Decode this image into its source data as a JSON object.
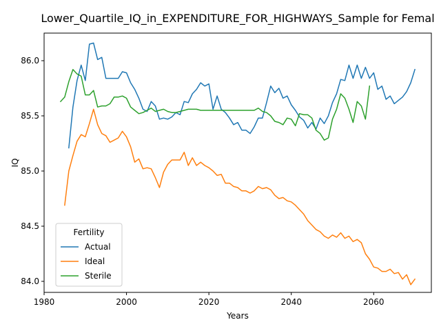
{
  "chart_data": {
    "type": "line",
    "title": "Lower_Quartile_IQ_in_EXPENDITURE_FOR_HIGHWAYS_Sample for Femal",
    "xlabel": "Years",
    "ylabel": "IQ",
    "xlim": [
      1980,
      2074
    ],
    "ylim": [
      83.9,
      86.25
    ],
    "xticks": [
      1980,
      2000,
      2020,
      2040,
      2060
    ],
    "yticks": [
      84.0,
      84.5,
      85.0,
      85.5,
      86.0
    ],
    "xtick_labels": [
      "1980",
      "2000",
      "2020",
      "2040",
      "2060"
    ],
    "ytick_labels": [
      "84.0",
      "84.5",
      "85.0",
      "85.5",
      "86.0"
    ],
    "grid": false,
    "legend": {
      "title": "Fertility",
      "placement": "lower-left"
    },
    "series": [
      {
        "name": "Actual",
        "color": "#1f77b4",
        "x": [
          1986,
          1987,
          1988,
          1989,
          1990,
          1991,
          1992,
          1993,
          1994,
          1995,
          1996,
          1997,
          1998,
          1999,
          2000,
          2001,
          2002,
          2003,
          2004,
          2005,
          2006,
          2007,
          2008,
          2009,
          2010,
          2011,
          2012,
          2013,
          2014,
          2015,
          2016,
          2017,
          2018,
          2019,
          2020,
          2021,
          2022,
          2023,
          2024,
          2025,
          2026,
          2027,
          2028,
          2029,
          2030,
          2031,
          2032,
          2033,
          2034,
          2035,
          2036,
          2037,
          2038,
          2039,
          2040,
          2041,
          2042,
          2043,
          2044,
          2045,
          2046,
          2047,
          2048,
          2049,
          2050,
          2051,
          2052,
          2053,
          2054,
          2055,
          2056,
          2057,
          2058,
          2059,
          2060,
          2061,
          2062,
          2063,
          2064,
          2065,
          2066,
          2067,
          2068,
          2069,
          2070
        ],
        "y": [
          85.21,
          85.58,
          85.82,
          85.96,
          85.82,
          86.15,
          86.16,
          86.01,
          86.03,
          85.84,
          85.84,
          85.84,
          85.84,
          85.9,
          85.89,
          85.8,
          85.74,
          85.66,
          85.56,
          85.54,
          85.63,
          85.59,
          85.47,
          85.48,
          85.47,
          85.49,
          85.53,
          85.51,
          85.63,
          85.62,
          85.7,
          85.74,
          85.8,
          85.77,
          85.79,
          85.56,
          85.68,
          85.56,
          85.53,
          85.48,
          85.42,
          85.44,
          85.37,
          85.37,
          85.34,
          85.4,
          85.48,
          85.48,
          85.62,
          85.77,
          85.71,
          85.75,
          85.66,
          85.68,
          85.6,
          85.55,
          85.49,
          85.46,
          85.39,
          85.44,
          85.38,
          85.48,
          85.43,
          85.5,
          85.62,
          85.7,
          85.83,
          85.82,
          85.96,
          85.84,
          85.96,
          85.84,
          85.94,
          85.84,
          85.89,
          85.74,
          85.77,
          85.65,
          85.68,
          85.61,
          85.64,
          85.67,
          85.72,
          85.8,
          85.92
        ]
      },
      {
        "name": "Ideal",
        "color": "#ff7f0e",
        "x": [
          1985,
          1986,
          1987,
          1988,
          1989,
          1990,
          1991,
          1992,
          1993,
          1994,
          1995,
          1996,
          1997,
          1998,
          1999,
          2000,
          2001,
          2002,
          2003,
          2004,
          2005,
          2006,
          2007,
          2008,
          2009,
          2010,
          2011,
          2012,
          2013,
          2014,
          2015,
          2016,
          2017,
          2018,
          2019,
          2020,
          2021,
          2022,
          2023,
          2024,
          2025,
          2026,
          2027,
          2028,
          2029,
          2030,
          2031,
          2032,
          2033,
          2034,
          2035,
          2036,
          2037,
          2038,
          2039,
          2040,
          2041,
          2042,
          2043,
          2044,
          2045,
          2046,
          2047,
          2048,
          2049,
          2050,
          2051,
          2052,
          2053,
          2054,
          2055,
          2056,
          2057,
          2058,
          2059,
          2060,
          2061,
          2062,
          2063,
          2064,
          2065,
          2066,
          2067,
          2068,
          2069,
          2070
        ],
        "y": [
          84.69,
          85.0,
          85.14,
          85.27,
          85.33,
          85.31,
          85.43,
          85.56,
          85.42,
          85.34,
          85.32,
          85.26,
          85.28,
          85.3,
          85.36,
          85.31,
          85.22,
          85.08,
          85.11,
          85.02,
          85.03,
          85.02,
          84.94,
          84.85,
          84.99,
          85.06,
          85.1,
          85.1,
          85.1,
          85.17,
          85.05,
          85.12,
          85.05,
          85.08,
          85.05,
          85.03,
          85.0,
          84.96,
          84.97,
          84.89,
          84.89,
          84.86,
          84.85,
          84.82,
          84.82,
          84.8,
          84.82,
          84.86,
          84.84,
          84.85,
          84.83,
          84.78,
          84.75,
          84.76,
          84.73,
          84.72,
          84.69,
          84.65,
          84.61,
          84.55,
          84.51,
          84.47,
          84.45,
          84.41,
          84.39,
          84.42,
          84.4,
          84.44,
          84.39,
          84.41,
          84.36,
          84.38,
          84.35,
          84.25,
          84.2,
          84.13,
          84.12,
          84.09,
          84.09,
          84.11,
          84.07,
          84.08,
          84.02,
          84.06,
          83.97,
          84.02
        ]
      },
      {
        "name": "Sterile",
        "color": "#2ca02c",
        "x": [
          1984,
          1985,
          1986,
          1987,
          1988,
          1989,
          1990,
          1991,
          1992,
          1993,
          1994,
          1995,
          1996,
          1997,
          1998,
          1999,
          2000,
          2001,
          2002,
          2003,
          2004,
          2005,
          2006,
          2007,
          2008,
          2009,
          2010,
          2011,
          2012,
          2013,
          2014,
          2015,
          2016,
          2017,
          2018,
          2019,
          2020,
          2021,
          2022,
          2023,
          2024,
          2025,
          2026,
          2027,
          2028,
          2029,
          2030,
          2031,
          2032,
          2033,
          2034,
          2035,
          2036,
          2037,
          2038,
          2039,
          2040,
          2041,
          2042,
          2043,
          2044,
          2045,
          2046,
          2047,
          2048,
          2049,
          2050,
          2051,
          2052,
          2053,
          2054,
          2055,
          2056,
          2057,
          2058,
          2059
        ],
        "y": [
          85.63,
          85.67,
          85.81,
          85.92,
          85.88,
          85.86,
          85.69,
          85.69,
          85.73,
          85.58,
          85.59,
          85.59,
          85.61,
          85.67,
          85.67,
          85.68,
          85.66,
          85.58,
          85.55,
          85.52,
          85.53,
          85.55,
          85.57,
          85.54,
          85.55,
          85.56,
          85.54,
          85.53,
          85.53,
          85.54,
          85.55,
          85.56,
          85.56,
          85.56,
          85.55,
          85.55,
          85.55,
          85.55,
          85.55,
          85.55,
          85.55,
          85.55,
          85.55,
          85.55,
          85.55,
          85.55,
          85.55,
          85.55,
          85.57,
          85.54,
          85.53,
          85.5,
          85.45,
          85.44,
          85.42,
          85.48,
          85.47,
          85.41,
          85.52,
          85.51,
          85.51,
          85.48,
          85.37,
          85.34,
          85.28,
          85.3,
          85.47,
          85.56,
          85.7,
          85.66,
          85.56,
          85.44,
          85.63,
          85.59,
          85.47,
          85.77
        ]
      }
    ]
  }
}
